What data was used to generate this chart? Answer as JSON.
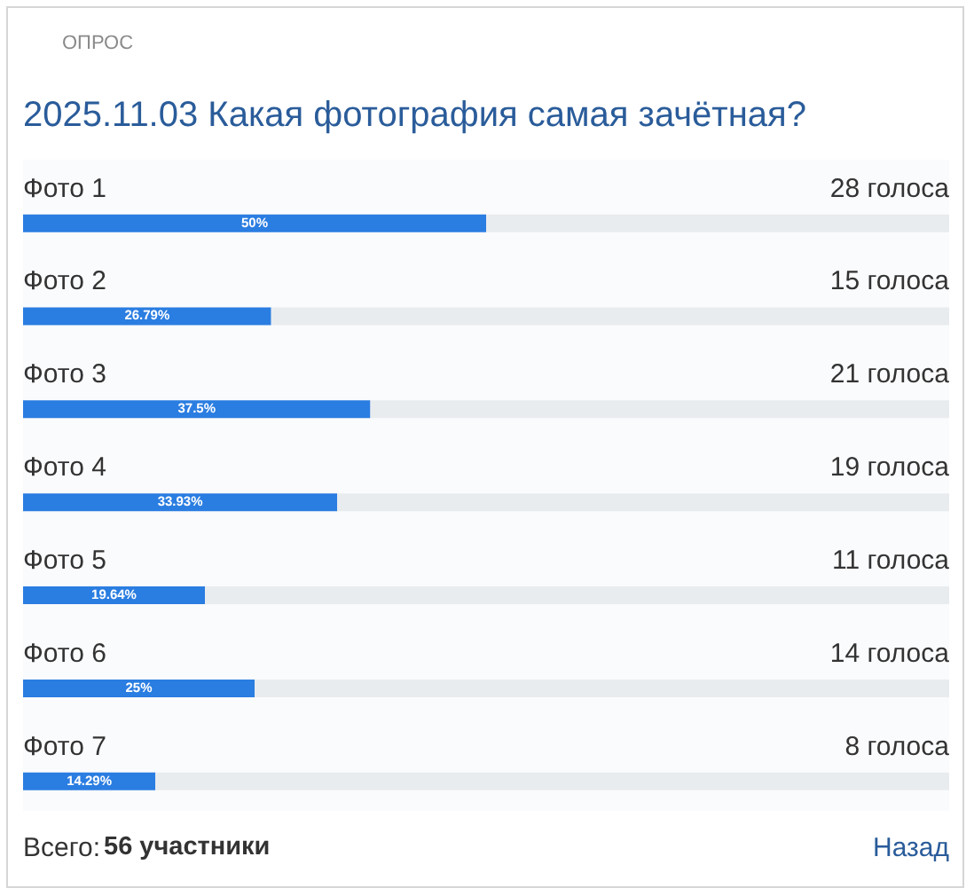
{
  "chart_data": {
    "type": "bar",
    "orientation": "horizontal",
    "stacked": true,
    "title": "2025.11.03 Какая фотография самая зачётная?",
    "categories": [
      "Фото 1",
      "Фото 2",
      "Фото 3",
      "Фото 4",
      "Фото 5",
      "Фото 6",
      "Фото 7"
    ],
    "series": [
      {
        "color": "#2a7de1",
        "values": [
          50,
          26.79,
          37.5,
          33.93,
          19.64,
          25,
          14.29
        ],
        "value_labels": [
          "50%",
          "26.79%",
          "37.5%",
          "33.93%",
          "19.64%",
          "25%",
          "14.29%"
        ]
      },
      {
        "color": "#e9ecef",
        "values": [
          50,
          73.21,
          62.5,
          66.07,
          80.36,
          75,
          85.71
        ]
      }
    ],
    "xlim": [
      0,
      100
    ],
    "tick_labels": "y",
    "annotations": [
      "ОПРОС",
      "28 голоса",
      "15 голоса",
      "21 голоса",
      "19 голоса",
      "11 голоса",
      "14 голоса",
      "8 голоса",
      "Всего:",
      "56 участники",
      "Назад"
    ]
  }
}
